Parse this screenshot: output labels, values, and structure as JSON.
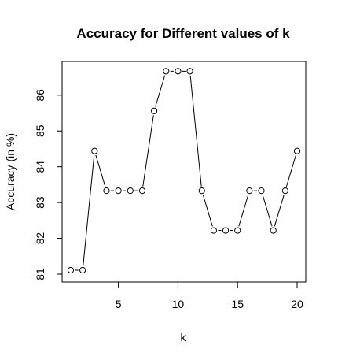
{
  "chart_data": {
    "type": "line",
    "title": "Accuracy for Different values of k",
    "xlabel": "k",
    "ylabel": "Accuracy (in %)",
    "xlim": [
      1,
      20
    ],
    "ylim": [
      81,
      86.7
    ],
    "x_ticks": [
      5,
      10,
      15,
      20
    ],
    "y_ticks": [
      81,
      82,
      83,
      84,
      85,
      86
    ],
    "grid": false,
    "legend": "none",
    "markers": "open-circle",
    "line_style": "segments-between-points",
    "x": [
      1,
      2,
      3,
      4,
      5,
      6,
      7,
      8,
      9,
      10,
      11,
      12,
      13,
      14,
      15,
      16,
      17,
      18,
      19,
      20
    ],
    "y": [
      81.11,
      81.11,
      84.44,
      83.33,
      83.33,
      83.33,
      83.33,
      85.56,
      86.67,
      86.67,
      86.67,
      83.33,
      82.22,
      82.22,
      82.22,
      83.33,
      83.33,
      82.22,
      83.33,
      84.44
    ],
    "colors": {
      "line": "#000000",
      "marker_stroke": "#000000",
      "marker_fill": "#ffffff"
    }
  }
}
